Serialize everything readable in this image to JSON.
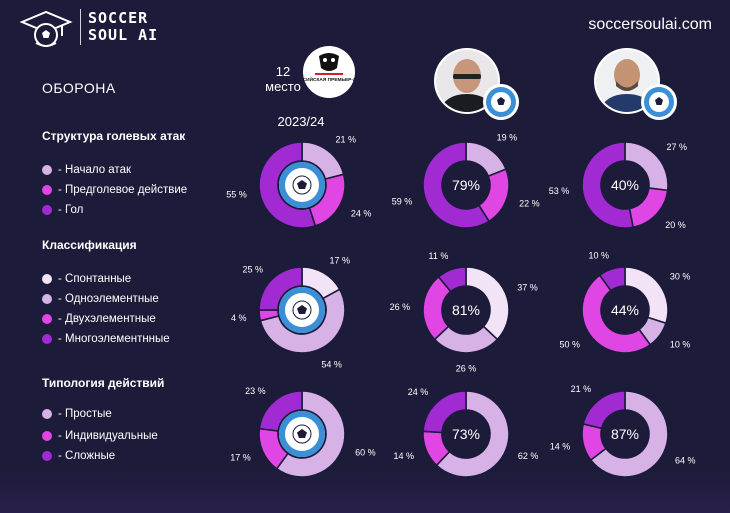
{
  "header": {
    "brand_line1": "SOCCER",
    "brand_line2": "SOUL AI",
    "site_url": "soccersoulai.com"
  },
  "section_title": "ОБОРОНА",
  "columns": {
    "place_number": "12",
    "place_word": "место",
    "season": "2023/24",
    "league_logo_text": "РОССИЙСКАЯ ПРЕМЬЕР-ЛИГА",
    "badge_text": "ФУТБОЛЬНЫЙ КЛУБ ОРЕНБУРГ"
  },
  "colors": {
    "light": "#f2e3f7",
    "lilac": "#d6b2e6",
    "pink": "#e046e3",
    "violet": "#a12ad3",
    "background": "#1c1b3a"
  },
  "groups": [
    {
      "title": "Структура голевых атак",
      "legend": [
        {
          "label": "- Начало атак",
          "color": "#d6b2e6"
        },
        {
          "label": "- Предголевое действие",
          "color": "#e046e3"
        },
        {
          "label": "- Гол",
          "color": "#a12ad3"
        }
      ]
    },
    {
      "title": "Классификация",
      "legend": [
        {
          "label": "- Спонтанные",
          "color": "#f2e3f7"
        },
        {
          "label": "- Одноэлементные",
          "color": "#d6b2e6"
        },
        {
          "label": "- Двухэлементные",
          "color": "#e046e3"
        },
        {
          "label": "- Многоэлементнные",
          "color": "#a12ad3"
        }
      ]
    },
    {
      "title": "Типология действий",
      "legend": [
        {
          "label": "- Простые",
          "color": "#d6b2e6"
        },
        {
          "label": "- Индивидуальные",
          "color": "#e046e3"
        },
        {
          "label": "- Сложные",
          "color": "#a12ad3"
        }
      ]
    }
  ],
  "chart_data": [
    {
      "type": "pie",
      "group": "Структура голевых атак",
      "column": "2023/24",
      "center_text": "",
      "labels": [
        "Начало атак",
        "Предголевое действие",
        "Гол"
      ],
      "values": [
        21,
        24,
        55
      ],
      "value_labels": [
        "21 %",
        "24 %",
        "55 %"
      ],
      "colors": [
        "#d6b2e6",
        "#e046e3",
        "#a12ad3"
      ]
    },
    {
      "type": "pie",
      "group": "Структура голевых атак",
      "column": "coach-1",
      "center_text": "79%",
      "labels": [
        "Начало атак",
        "Предголевое действие",
        "Гол"
      ],
      "values": [
        19,
        22,
        59
      ],
      "value_labels": [
        "19 %",
        "22 %",
        "59 %"
      ],
      "colors": [
        "#d6b2e6",
        "#e046e3",
        "#a12ad3"
      ]
    },
    {
      "type": "pie",
      "group": "Структура голевых атак",
      "column": "coach-2",
      "center_text": "40%",
      "labels": [
        "Начало атак",
        "Предголевое действие",
        "Гол"
      ],
      "values": [
        27,
        20,
        53
      ],
      "value_labels": [
        "27 %",
        "20 %",
        "53 %"
      ],
      "colors": [
        "#d6b2e6",
        "#e046e3",
        "#a12ad3"
      ]
    },
    {
      "type": "pie",
      "group": "Классификация",
      "column": "2023/24",
      "center_text": "",
      "labels": [
        "Спонтанные",
        "Одноэлементные",
        "Двухэлементные",
        "Многоэлементнные"
      ],
      "values": [
        17,
        54,
        4,
        25
      ],
      "value_labels": [
        "17 %",
        "54 %",
        "4 %",
        "25 %"
      ],
      "colors": [
        "#f2e3f7",
        "#d6b2e6",
        "#e046e3",
        "#a12ad3"
      ]
    },
    {
      "type": "pie",
      "group": "Классификация",
      "column": "coach-1",
      "center_text": "81%",
      "labels": [
        "Спонтанные",
        "Одноэлементные",
        "Двухэлементные",
        "Многоэлементнные"
      ],
      "values": [
        37,
        26,
        26,
        11
      ],
      "value_labels": [
        "37 %",
        "26 %",
        "26 %",
        "11 %"
      ],
      "colors": [
        "#f2e3f7",
        "#d6b2e6",
        "#e046e3",
        "#a12ad3"
      ]
    },
    {
      "type": "pie",
      "group": "Классификация",
      "column": "coach-2",
      "center_text": "44%",
      "labels": [
        "Спонтанные",
        "Одноэлементные",
        "Двухэлементные",
        "Многоэлементнные"
      ],
      "values": [
        30,
        10,
        50,
        10
      ],
      "value_labels": [
        "30 %",
        "10 %",
        "50 %",
        "10 %"
      ],
      "colors": [
        "#f2e3f7",
        "#d6b2e6",
        "#e046e3",
        "#a12ad3"
      ]
    },
    {
      "type": "pie",
      "group": "Типология действий",
      "column": "2023/24",
      "center_text": "",
      "labels": [
        "Простые",
        "Индивидуальные",
        "Сложные"
      ],
      "values": [
        60,
        17,
        23
      ],
      "value_labels": [
        "60 %",
        "17 %",
        "23 %"
      ],
      "colors": [
        "#d6b2e6",
        "#e046e3",
        "#a12ad3"
      ]
    },
    {
      "type": "pie",
      "group": "Типология действий",
      "column": "coach-1",
      "center_text": "73%",
      "labels": [
        "Простые",
        "Индивидуальные",
        "Сложные"
      ],
      "values": [
        62,
        14,
        24
      ],
      "value_labels": [
        "62 %",
        "14 %",
        "24 %"
      ],
      "colors": [
        "#d6b2e6",
        "#e046e3",
        "#a12ad3"
      ]
    },
    {
      "type": "pie",
      "group": "Типология действий",
      "column": "coach-2",
      "center_text": "87%",
      "labels": [
        "Простые",
        "Индивидуальные",
        "Сложные"
      ],
      "values": [
        64,
        14,
        21
      ],
      "value_labels": [
        "64 %",
        "14 %",
        "21 %"
      ],
      "colors": [
        "#d6b2e6",
        "#e046e3",
        "#a12ad3"
      ]
    }
  ]
}
